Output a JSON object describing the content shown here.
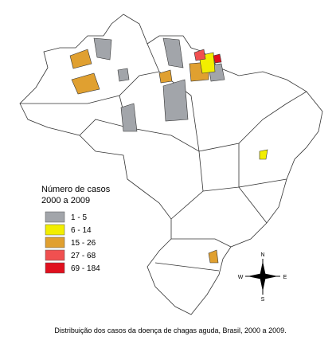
{
  "legend": {
    "title": [
      "Número de casos",
      "2000 a 2009"
    ],
    "items": [
      {
        "label": "1 - 5",
        "color": "#a2a5aa"
      },
      {
        "label": "6 - 14",
        "color": "#f2ee00"
      },
      {
        "label": "15 - 26",
        "color": "#e0a030"
      },
      {
        "label": "27 - 68",
        "color": "#f05050"
      },
      {
        "label": "69 - 184",
        "color": "#e0101e"
      }
    ]
  },
  "compass": {
    "n": "N",
    "s": "S",
    "e": "E",
    "w": "W"
  },
  "caption": "Distribuição dos casos da doença de chagas aguda, Brasil, 2000 a 2009."
}
